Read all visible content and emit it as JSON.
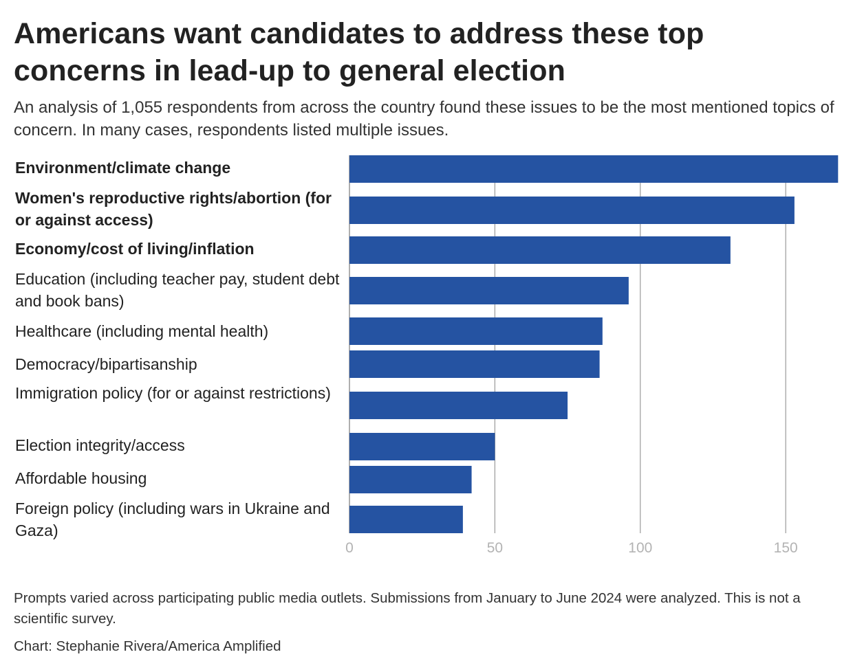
{
  "title": "Americans want candidates to address these top concerns in lead-up to general election",
  "subtitle": "An analysis of 1,055 respondents from across the country found these issues to be the most mentioned topics of concern. In many cases, respondents listed multiple issues.",
  "note": "Prompts varied across participating public media outlets. Submissions from January to June 2024 were analyzed. This is not a scientific survey.",
  "credit": "Chart: Stephanie Rivera/America Amplified",
  "colors": {
    "bar": "#2553a2",
    "grid": "#9a9a9a",
    "tick_text": "#b3b3b3"
  },
  "chart_data": {
    "type": "bar",
    "orientation": "horizontal",
    "title": "",
    "xlabel": "",
    "ylabel": "",
    "grid": true,
    "xlim": [
      0,
      168
    ],
    "xticks": [
      0,
      50,
      100,
      150
    ],
    "categories": [
      "Environment/climate change",
      "Women's reproductive rights/abortion (for or against access)",
      "Economy/cost of living/inflation",
      "Education (including teacher pay, student debt and book bans)",
      "Healthcare (including mental health)",
      "Democracy/bipartisanship",
      "Immigration policy (for or against restrictions)",
      "Election integrity/access",
      "Affordable housing",
      "Foreign policy (including wars in Ukraine and Gaza)"
    ],
    "bold_categories": [
      true,
      true,
      true,
      false,
      false,
      false,
      false,
      false,
      false,
      false
    ],
    "values": [
      168,
      153,
      131,
      96,
      87,
      86,
      75,
      50,
      42,
      39
    ]
  }
}
